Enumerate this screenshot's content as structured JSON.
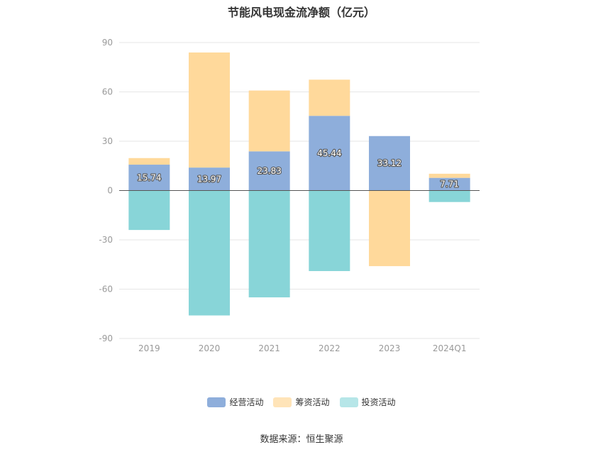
{
  "chart_data": {
    "type": "bar",
    "stacked": true,
    "title": "节能风电现金流净额（亿元）",
    "categories": [
      "2019",
      "2020",
      "2021",
      "2022",
      "2023",
      "2024Q1"
    ],
    "ylim": [
      -90,
      90
    ],
    "yticks": [
      "90",
      "60",
      "30",
      "0",
      "-30",
      "-60",
      "-90"
    ],
    "ytick_values": [
      90,
      60,
      30,
      0,
      -30,
      -60,
      -90
    ],
    "grid": true,
    "legend_position": "bottom",
    "series": [
      {
        "name": "经营活动",
        "color": "#8eaedb",
        "values": [
          15.74,
          13.97,
          23.83,
          45.44,
          33.12,
          7.71
        ],
        "labels": [
          "15.74",
          "13.97",
          "23.83",
          "45.44",
          "33.12",
          "7.71"
        ]
      },
      {
        "name": "筹资活动",
        "color": "#ffd99b",
        "values": [
          4.0,
          70.0,
          37.0,
          22.0,
          -46.0,
          2.5
        ]
      },
      {
        "name": "投资活动",
        "color": "#88d5d8",
        "values": [
          -24.0,
          -76.0,
          -65.0,
          -49.0,
          0.0,
          -7.0
        ]
      }
    ],
    "legend_colors": [
      "#8eaedb",
      "#ffe4b8",
      "#b6e6e8"
    ]
  },
  "source": "数据来源：恒生聚源"
}
